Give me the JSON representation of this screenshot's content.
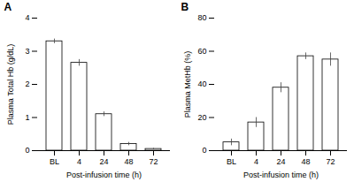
{
  "chart_data": [
    {
      "type": "bar",
      "title": "A",
      "categories": [
        "BL",
        "4",
        "24",
        "48",
        "72"
      ],
      "values": [
        3.3,
        2.65,
        1.1,
        0.2,
        0.05
      ],
      "errors": [
        0.07,
        0.1,
        0.07,
        0.05,
        0.02
      ],
      "xlabel": "Post-infusion time (h)",
      "ylabel": "Plasma Total Hb (g/dL)",
      "ylim": [
        0,
        4
      ],
      "yticks": [
        0,
        1,
        2,
        3,
        4
      ],
      "color": "#ffffff"
    },
    {
      "type": "bar",
      "title": "B",
      "categories": [
        "BL",
        "4",
        "24",
        "48",
        "72"
      ],
      "values": [
        5,
        17,
        38,
        57,
        55
      ],
      "errors": [
        2,
        3,
        3,
        2,
        4
      ],
      "xlabel": "Post-infusion time (h)",
      "ylabel": "Plasma MetHb (%)",
      "ylim": [
        0,
        80
      ],
      "yticks": [
        0,
        20,
        40,
        60,
        80
      ],
      "color": "#ffffff"
    }
  ]
}
